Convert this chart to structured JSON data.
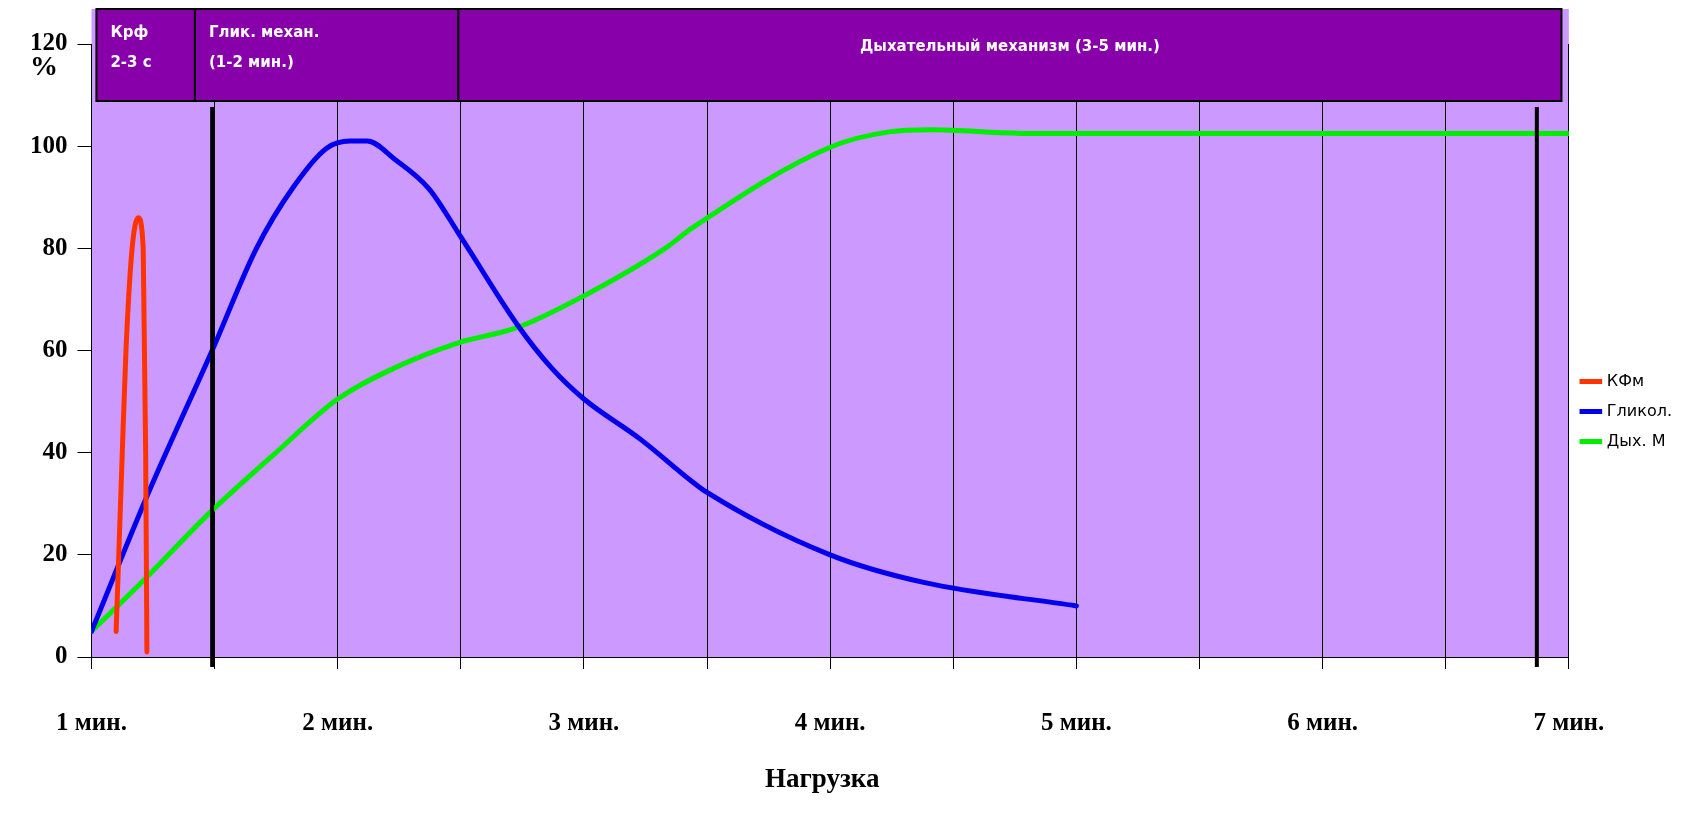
{
  "chart_data": {
    "type": "line",
    "xlabel": "Нагрузка",
    "ylabel": "%",
    "xlim": [
      1,
      7
    ],
    "xticks": [
      {
        "value": 1,
        "label": "1 мин."
      },
      {
        "value": 1.5,
        "label": null
      },
      {
        "value": 2,
        "label": "2 мин."
      },
      {
        "value": 2.5,
        "label": null
      },
      {
        "value": 3,
        "label": "3 мин."
      },
      {
        "value": 3.5,
        "label": null
      },
      {
        "value": 4,
        "label": "4 мин."
      },
      {
        "value": 4.5,
        "label": null
      },
      {
        "value": 5,
        "label": "5 мин."
      },
      {
        "value": 5.5,
        "label": null
      },
      {
        "value": 6,
        "label": "6 мин."
      },
      {
        "value": 6.5,
        "label": null
      },
      {
        "value": 7,
        "label": "7 мин."
      }
    ],
    "ylim": [
      0,
      120
    ],
    "yticks": [
      0,
      20,
      40,
      60,
      80,
      100,
      120
    ],
    "grid": "x",
    "legend": "right",
    "marker": "none",
    "line_style": "solid",
    "series": [
      {
        "name": "КФм",
        "color": "#ff3300",
        "x": [
          1.1,
          1.125,
          1.14,
          1.165,
          1.19,
          1.21,
          1.22,
          1.225
        ],
        "values": [
          5,
          40,
          60,
          80,
          86,
          80,
          40,
          1
        ]
      },
      {
        "name": "Гликол.",
        "color": "#0000ee",
        "x": [
          1,
          1.23,
          1.49,
          1.67,
          1.82,
          1.955,
          2.05,
          2.12,
          2.23,
          2.37,
          2.49,
          2.73,
          2.87,
          3,
          3.23,
          3.44,
          3.49,
          4,
          4.38,
          5
        ],
        "values": [
          5,
          32,
          60,
          80,
          92,
          99.6,
          101,
          101,
          97.5,
          91.7,
          83,
          65,
          56.5,
          50.5,
          42.6,
          34.3,
          32.5,
          20,
          14.6,
          10
        ]
      },
      {
        "name": "Дых. М",
        "color": "#00ee00",
        "x": [
          1,
          1.22,
          1.49,
          1.74,
          2,
          2.25,
          2.49,
          2.73,
          3,
          3.33,
          3.44,
          4,
          4.24,
          4.41,
          4.79,
          7
        ],
        "values": [
          5,
          15.4,
          28.7,
          39.6,
          50.5,
          57,
          61.5,
          64.5,
          70.7,
          80,
          84,
          99.8,
          102.8,
          103.2,
          102.5,
          102.5
        ]
      }
    ],
    "ref_lines": [
      {
        "axis": "x",
        "value": 1.49,
        "color": "#000000"
      },
      {
        "axis": "x",
        "value": 6.87,
        "color": "#000000"
      }
    ],
    "bands": [
      {
        "axis": "x",
        "from": 1.02,
        "to": 1.42,
        "label": "Крф\n2-3 с",
        "color": "#8800aa"
      },
      {
        "axis": "x",
        "from": 1.42,
        "to": 2.49,
        "label": "Глик. механ.\n(1-2 мин.)",
        "color": "#8800aa"
      },
      {
        "axis": "x",
        "from": 2.49,
        "to": 6.97,
        "label": "Дыхательный механизм (3-5 мин.)",
        "color": "#8800aa"
      }
    ]
  }
}
